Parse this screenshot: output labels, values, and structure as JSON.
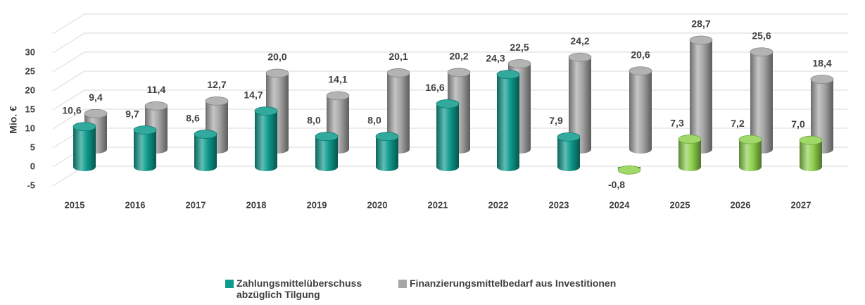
{
  "chart_data": {
    "type": "bar3d",
    "y_axis_label": "Mio. €",
    "categories": [
      "2015",
      "2016",
      "2017",
      "2018",
      "2019",
      "2020",
      "2021",
      "2022",
      "2023",
      "2024",
      "2025",
      "2026",
      "2027"
    ],
    "series": [
      {
        "name": "Zahlungsmittelüberschuss abzüglich Tilgung",
        "color": "#0e9a8c",
        "colors": [
          "#0e9a8c",
          "#0e9a8c",
          "#0e9a8c",
          "#0e9a8c",
          "#0e9a8c",
          "#0e9a8c",
          "#0e9a8c",
          "#0e9a8c",
          "#0e9a8c",
          "#8fd14f",
          "#8fd14f",
          "#8fd14f",
          "#8fd14f"
        ],
        "values": [
          10.6,
          9.7,
          8.6,
          14.7,
          8.0,
          8.0,
          16.6,
          24.3,
          7.9,
          -0.8,
          7.3,
          7.2,
          7.0
        ],
        "value_labels": [
          "10,6",
          "9,7",
          "8,6",
          "14,7",
          "8,0",
          "8,0",
          "16,6",
          "24,3",
          "7,9",
          "-0,8",
          "7,3",
          "7,2",
          "7,0"
        ]
      },
      {
        "name": "Finanzierungsmittelbedarf aus Investitionen",
        "color": "#a6a6a6",
        "values": [
          9.4,
          11.4,
          12.7,
          20.0,
          14.1,
          20.1,
          20.2,
          22.5,
          24.2,
          20.6,
          28.7,
          25.6,
          18.4
        ],
        "value_labels": [
          "9,4",
          "11,4",
          "12,7",
          "20,0",
          "14,1",
          "20,1",
          "20,2",
          "22,5",
          "24,2",
          "20,6",
          "28,7",
          "25,6",
          "18,4"
        ]
      }
    ],
    "ylim": [
      -5,
      35
    ],
    "yticks": [
      -5,
      0,
      5,
      10,
      15,
      20,
      25,
      30
    ],
    "grid": true
  }
}
